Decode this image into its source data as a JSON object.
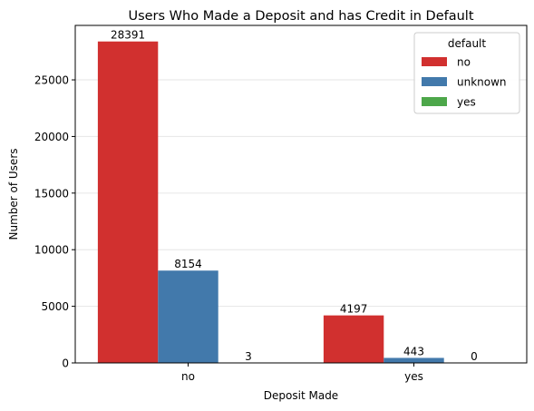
{
  "chart_data": {
    "type": "bar",
    "title": "Users Who Made a Deposit and has Credit in Default",
    "xlabel": "Deposit Made",
    "ylabel": "Number of Users",
    "categories": [
      "no",
      "yes"
    ],
    "series": [
      {
        "name": "no",
        "color": "#d1302f",
        "values": [
          28391,
          4197
        ]
      },
      {
        "name": "unknown",
        "color": "#4279ab",
        "values": [
          8154,
          443
        ]
      },
      {
        "name": "yes",
        "color": "#4da74a",
        "values": [
          3,
          0
        ]
      }
    ],
    "ylim": [
      0,
      29811
    ],
    "yticks": [
      0,
      5000,
      10000,
      15000,
      20000,
      25000
    ],
    "legend_title": "default",
    "legend_position": "top-right",
    "grid": "y"
  }
}
